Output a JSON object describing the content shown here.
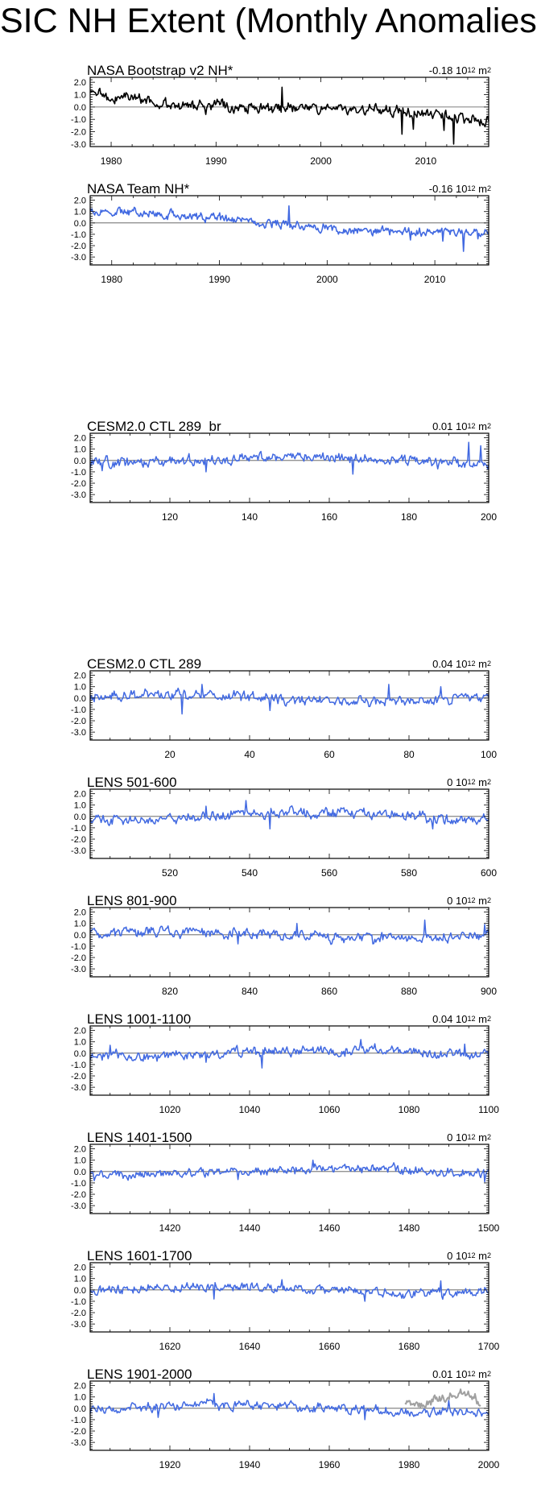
{
  "page": {
    "title": "SIC NH Extent (Monthly Anomalies)"
  },
  "colors": {
    "obs": "#000000",
    "model": "#4169e1",
    "overlay": "#a0a0a0",
    "zero_line": "#555555"
  },
  "chart_data": [
    {
      "type": "line",
      "title": "NASA Bootstrap v2 NH*",
      "value": "-0.18",
      "unit_base": "10",
      "unit_exp": "12",
      "unit_tail": "m",
      "unit_tail_exp": "2",
      "xlim": [
        1978,
        2016
      ],
      "ylim": [
        -3.2,
        2.4
      ],
      "yticks": [
        "2.0",
        "1.0",
        "0.0",
        "-1.0",
        "-2.0",
        "-3.0"
      ],
      "xticks": [
        "1980",
        "1990",
        "2000",
        "2010"
      ],
      "xtick_values": [
        1980,
        1990,
        2000,
        2010
      ],
      "trend": -0.058,
      "base": 1.0,
      "amp": 0.32,
      "seed": 3,
      "color": "obs",
      "events": [
        [
          2007.7,
          -2.2
        ],
        [
          2012.7,
          -3.0
        ],
        [
          1996.3,
          1.6
        ],
        [
          1989.0,
          -0.6
        ],
        [
          2008.8,
          -1.8
        ],
        [
          2011.7,
          -1.9
        ],
        [
          2015.6,
          -1.5
        ]
      ]
    },
    {
      "type": "line",
      "title": "NASA Team NH*",
      "value": "-0.16",
      "unit_base": "10",
      "unit_exp": "12",
      "unit_tail": "m",
      "unit_tail_exp": "2",
      "xlim": [
        1978,
        2015
      ],
      "ylim": [
        -3.7,
        2.4
      ],
      "yticks": [
        "2.0",
        "1.0",
        "0.0",
        "-1.0",
        "-2.0",
        "-3.0"
      ],
      "xticks": [
        "1980",
        "1990",
        "2000",
        "2010"
      ],
      "xtick_values": [
        1980,
        1990,
        2000,
        2010
      ],
      "trend": -0.052,
      "base": 0.9,
      "amp": 0.28,
      "seed": 7,
      "color": "model",
      "events": [
        [
          2012.7,
          -2.5
        ],
        [
          2007.7,
          -1.5
        ],
        [
          1996.5,
          1.5
        ],
        [
          2010.7,
          -1.6
        ],
        [
          2014.0,
          -1.4
        ]
      ]
    },
    {
      "type": "line",
      "title": "CESM2.0 CTL 289_br",
      "value": "0.01",
      "unit_base": "10",
      "unit_exp": "12",
      "unit_tail": "m",
      "unit_tail_exp": "2",
      "xlim": [
        100,
        200
      ],
      "ylim": [
        -3.7,
        2.4
      ],
      "yticks": [
        "2.0",
        "1.0",
        "0.0",
        "-1.0",
        "-2.0",
        "-3.0"
      ],
      "xticks": [
        "120",
        "140",
        "160",
        "180",
        "200"
      ],
      "xtick_values": [
        120,
        140,
        160,
        180,
        200
      ],
      "trend": 0,
      "base": 0,
      "amp": 0.34,
      "seed": 11,
      "color": "model",
      "events": [
        [
          195,
          1.6
        ],
        [
          166,
          -1.2
        ],
        [
          129,
          -1.0
        ],
        [
          103,
          -0.9
        ],
        [
          198,
          1.3
        ]
      ]
    },
    {
      "type": "line",
      "title": "CESM2.0 CTL 289",
      "value": "0.04",
      "unit_base": "10",
      "unit_exp": "12",
      "unit_tail": "m",
      "unit_tail_exp": "2",
      "xlim": [
        0,
        100
      ],
      "ylim": [
        -3.7,
        2.4
      ],
      "yticks": [
        "2.0",
        "1.0",
        "0.0",
        "-1.0",
        "-2.0",
        "-3.0"
      ],
      "xticks": [
        "20",
        "40",
        "60",
        "80",
        "100"
      ],
      "xtick_values": [
        20,
        40,
        60,
        80,
        100
      ],
      "trend": 0,
      "base": 0,
      "amp": 0.34,
      "seed": 13,
      "color": "model",
      "events": [
        [
          23,
          -1.4
        ],
        [
          28,
          1.2
        ],
        [
          75,
          1.2
        ],
        [
          45,
          -1.1
        ],
        [
          88,
          1.0
        ]
      ]
    },
    {
      "type": "line",
      "title": "LENS 501-600",
      "value": "0",
      "unit_base": "10",
      "unit_exp": "12",
      "unit_tail": "m",
      "unit_tail_exp": "2",
      "xlim": [
        500,
        600
      ],
      "ylim": [
        -3.7,
        2.4
      ],
      "yticks": [
        "2.0",
        "1.0",
        "0.0",
        "-1.0",
        "-2.0",
        "-3.0"
      ],
      "xticks": [
        "520",
        "540",
        "560",
        "580",
        "600"
      ],
      "xtick_values": [
        520,
        540,
        560,
        580,
        600
      ],
      "trend": 0,
      "base": 0,
      "amp": 0.34,
      "seed": 17,
      "color": "model",
      "events": [
        [
          539,
          1.4
        ],
        [
          586,
          -1.1
        ],
        [
          545,
          -1.1
        ],
        [
          529,
          0.9
        ],
        [
          597,
          -0.7
        ]
      ]
    },
    {
      "type": "line",
      "title": "LENS 801-900",
      "value": "0",
      "unit_base": "10",
      "unit_exp": "12",
      "unit_tail": "m",
      "unit_tail_exp": "2",
      "xlim": [
        800,
        900
      ],
      "ylim": [
        -3.7,
        2.4
      ],
      "yticks": [
        "2.0",
        "1.0",
        "0.0",
        "-1.0",
        "-2.0",
        "-3.0"
      ],
      "xticks": [
        "820",
        "840",
        "860",
        "880",
        "900"
      ],
      "xtick_values": [
        820,
        840,
        860,
        880,
        900
      ],
      "trend": 0,
      "base": 0,
      "amp": 0.33,
      "seed": 19,
      "color": "model",
      "events": [
        [
          884,
          1.3
        ],
        [
          852,
          1.0
        ],
        [
          871,
          -0.8
        ],
        [
          899,
          0.9
        ],
        [
          837,
          -0.8
        ]
      ]
    },
    {
      "type": "line",
      "title": "LENS 1001-1100",
      "value": "0.04",
      "unit_base": "10",
      "unit_exp": "12",
      "unit_tail": "m",
      "unit_tail_exp": "2",
      "xlim": [
        1000,
        1100
      ],
      "ylim": [
        -3.7,
        2.4
      ],
      "yticks": [
        "2.0",
        "1.0",
        "0.0",
        "-1.0",
        "-2.0",
        "-3.0"
      ],
      "xticks": [
        "1020",
        "1040",
        "1060",
        "1080",
        "1100"
      ],
      "xtick_values": [
        1020,
        1040,
        1060,
        1080,
        1100
      ],
      "trend": 0,
      "base": 0,
      "amp": 0.33,
      "seed": 23,
      "color": "model",
      "events": [
        [
          1043,
          -1.3
        ],
        [
          1068,
          1.2
        ],
        [
          1094,
          0.8
        ],
        [
          1005,
          0.7
        ],
        [
          1029,
          -0.8
        ]
      ]
    },
    {
      "type": "line",
      "title": "LENS 1401-1500",
      "value": "0",
      "unit_base": "10",
      "unit_exp": "12",
      "unit_tail": "m",
      "unit_tail_exp": "2",
      "xlim": [
        1400,
        1500
      ],
      "ylim": [
        -3.7,
        2.4
      ],
      "yticks": [
        "2.0",
        "1.0",
        "0.0",
        "-1.0",
        "-2.0",
        "-3.0"
      ],
      "xticks": [
        "1420",
        "1440",
        "1460",
        "1480",
        "1500"
      ],
      "xtick_values": [
        1420,
        1440,
        1460,
        1480,
        1500
      ],
      "trend": 0,
      "base": 0,
      "amp": 0.3,
      "seed": 29,
      "color": "model",
      "events": [
        [
          1456,
          1.0
        ],
        [
          1499,
          -0.9
        ],
        [
          1401,
          -0.8
        ],
        [
          1437,
          -0.7
        ]
      ]
    },
    {
      "type": "line",
      "title": "LENS 1601-1700",
      "value": "0",
      "unit_base": "10",
      "unit_exp": "12",
      "unit_tail": "m",
      "unit_tail_exp": "2",
      "xlim": [
        1600,
        1700
      ],
      "ylim": [
        -3.7,
        2.4
      ],
      "yticks": [
        "2.0",
        "1.0",
        "0.0",
        "-1.0",
        "-2.0",
        "-3.0"
      ],
      "xticks": [
        "1620",
        "1640",
        "1660",
        "1680",
        "1700"
      ],
      "xtick_values": [
        1620,
        1640,
        1660,
        1680,
        1700
      ],
      "trend": 0,
      "base": 0,
      "amp": 0.3,
      "seed": 31,
      "color": "model",
      "events": [
        [
          1648,
          0.9
        ],
        [
          1669,
          -1.0
        ],
        [
          1688,
          0.8
        ],
        [
          1631,
          -0.8
        ]
      ]
    },
    {
      "type": "line",
      "title": "LENS 1901-2000",
      "value": "0.01",
      "unit_base": "10",
      "unit_exp": "12",
      "unit_tail": "m",
      "unit_tail_exp": "2",
      "xlim": [
        1900,
        2000
      ],
      "ylim": [
        -3.7,
        2.4
      ],
      "yticks": [
        "2.0",
        "1.0",
        "0.0",
        "-1.0",
        "-2.0",
        "-3.0"
      ],
      "xticks": [
        "1920",
        "1940",
        "1960",
        "1980",
        "2000"
      ],
      "xtick_values": [
        1920,
        1940,
        1960,
        1980,
        2000
      ],
      "trend": 0,
      "base": 0,
      "amp": 0.32,
      "seed": 37,
      "color": "model",
      "events": [
        [
          1931,
          1.3
        ],
        [
          1969,
          -1.0
        ],
        [
          1917,
          -0.8
        ],
        [
          1990,
          0.7
        ]
      ],
      "overlay": {
        "color": "overlay",
        "xlim": [
          1979,
          1998
        ],
        "base": 0.7,
        "amp": 0.35,
        "seed": 41
      }
    }
  ]
}
